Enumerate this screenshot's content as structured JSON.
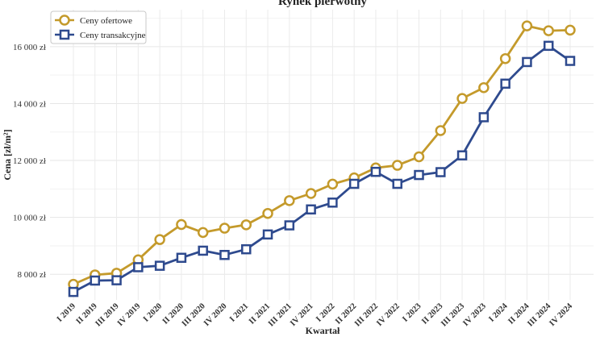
{
  "chart_data": {
    "type": "line",
    "title": "Rynek pierwotny",
    "xlabel": "Kwartał",
    "ylabel": "Cena [zł/m²]",
    "grid": true,
    "legend_position": "top-left",
    "ylim": [
      7100,
      17300
    ],
    "yticks": [
      {
        "value": 8000,
        "label": "8 000 zł"
      },
      {
        "value": 10000,
        "label": "10 000 zł"
      },
      {
        "value": 12000,
        "label": "12 000 zł"
      },
      {
        "value": 14000,
        "label": "14 000 zł"
      },
      {
        "value": 16000,
        "label": "16 000 zł"
      }
    ],
    "categories": [
      "I 2019",
      "II 2019",
      "III 2019",
      "IV 2019",
      "I 2020",
      "II 2020",
      "III 2020",
      "IV 2020",
      "I 2021",
      "II 2021",
      "III 2021",
      "IV 2021",
      "I 2022",
      "II 2022",
      "III 2022",
      "IV 2022",
      "I 2023",
      "II 2023",
      "III 2023",
      "IV 2023",
      "I 2024",
      "II 2024",
      "III 2024",
      "IV 2024"
    ],
    "series": [
      {
        "name": "Ceny ofertowe",
        "color": "#C49A2B",
        "marker": "circle",
        "values": [
          7650,
          7980,
          8040,
          8510,
          9220,
          9750,
          9470,
          9620,
          9740,
          10140,
          10590,
          10840,
          11170,
          11390,
          11740,
          11830,
          12130,
          13050,
          14180,
          14560,
          15580,
          16730,
          16560,
          16580
        ]
      },
      {
        "name": "Ceny transakcyjne",
        "color": "#2E4A8E",
        "marker": "square",
        "values": [
          7380,
          7780,
          7790,
          8250,
          8300,
          8580,
          8830,
          8680,
          8880,
          9400,
          9720,
          10280,
          10520,
          11180,
          11600,
          11180,
          11490,
          11590,
          12180,
          13520,
          14700,
          15460,
          16030,
          15500
        ]
      }
    ]
  }
}
